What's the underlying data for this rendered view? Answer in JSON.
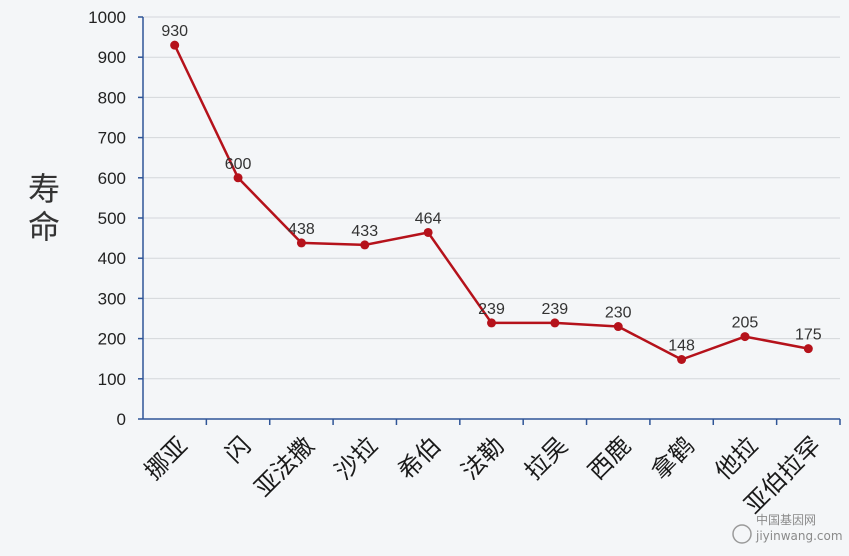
{
  "chart_data": {
    "type": "line",
    "title": "",
    "xlabel": "",
    "ylabel": "寿命",
    "ylim": [
      0,
      1000
    ],
    "yticks": [
      0,
      100,
      200,
      300,
      400,
      500,
      600,
      700,
      800,
      900,
      1000
    ],
    "grid": true,
    "categories": [
      "挪亚",
      "闪",
      "亚法撒",
      "沙拉",
      "希伯",
      "法勒",
      "拉吴",
      "西鹿",
      "拿鹤",
      "他拉",
      "亚伯拉罕"
    ],
    "series": [
      {
        "values": [
          930,
          600,
          438,
          433,
          464,
          239,
          239,
          230,
          148,
          205,
          175
        ],
        "color": "#b5121b"
      }
    ]
  },
  "watermark": {
    "text": "中国基因网",
    "url": "jiyinwang.com"
  }
}
